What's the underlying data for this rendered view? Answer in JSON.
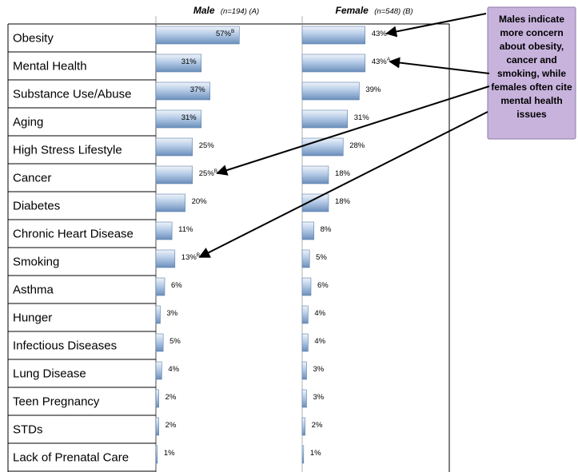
{
  "chart_data": {
    "type": "bar",
    "categories": [
      "Obesity",
      "Mental Health",
      "Substance Use/Abuse",
      "Aging",
      "High Stress Lifestyle",
      "Cancer",
      "Diabetes",
      "Chronic Heart Disease",
      "Smoking",
      "Asthma",
      "Hunger",
      "Infectious Diseases",
      "Lung Disease",
      "Teen Pregnancy",
      "STDs",
      "Lack of Prenatal Care"
    ],
    "series": [
      {
        "name": "Male",
        "sample": "(n=194) (A)",
        "values": [
          57,
          31,
          37,
          31,
          25,
          25,
          20,
          11,
          13,
          6,
          3,
          5,
          4,
          2,
          2,
          1
        ],
        "labels": [
          "57%",
          "31%",
          "37%",
          "31%",
          "25%",
          "25%",
          "20%",
          "11%",
          "13%",
          "6%",
          "3%",
          "5%",
          "4%",
          "2%",
          "2%",
          "1%"
        ],
        "sig": [
          "B",
          "",
          "",
          "",
          "",
          "B",
          "",
          "",
          "B",
          "",
          "",
          "",
          "",
          "",
          "",
          ""
        ]
      },
      {
        "name": "Female",
        "sample": "(n=548) (B)",
        "values": [
          43,
          43,
          39,
          31,
          28,
          18,
          18,
          8,
          5,
          6,
          4,
          4,
          3,
          3,
          2,
          1
        ],
        "labels": [
          "43%",
          "43%",
          "39%",
          "31%",
          "28%",
          "18%",
          "18%",
          "8%",
          "5%",
          "6%",
          "4%",
          "4%",
          "3%",
          "3%",
          "2%",
          "1%"
        ],
        "sig": [
          "",
          "A",
          "",
          "",
          "",
          "",
          "",
          "",
          "",
          "",
          "",
          "",
          "",
          "",
          "",
          ""
        ]
      }
    ],
    "xlim": [
      0,
      100
    ],
    "annotation": {
      "text": [
        "Males indicate",
        "more concern",
        "about obesity,",
        "cancer and",
        "smoking, while",
        "females often cite",
        "mental health",
        "issues"
      ],
      "colors": {
        "fill": "#c8b3dd",
        "border": "#8e79a8"
      },
      "arrows": [
        {
          "series": "Female",
          "category": "Obesity"
        },
        {
          "series": "Female",
          "category": "Mental Health"
        },
        {
          "series": "Male",
          "category": "Cancer"
        },
        {
          "series": "Male",
          "category": "Smoking"
        }
      ]
    },
    "grid": false,
    "colors": {
      "bar_light": "#e8eff8",
      "bar_mid": "#a9c2e2",
      "bar_dark": "#5b7fa8"
    }
  }
}
